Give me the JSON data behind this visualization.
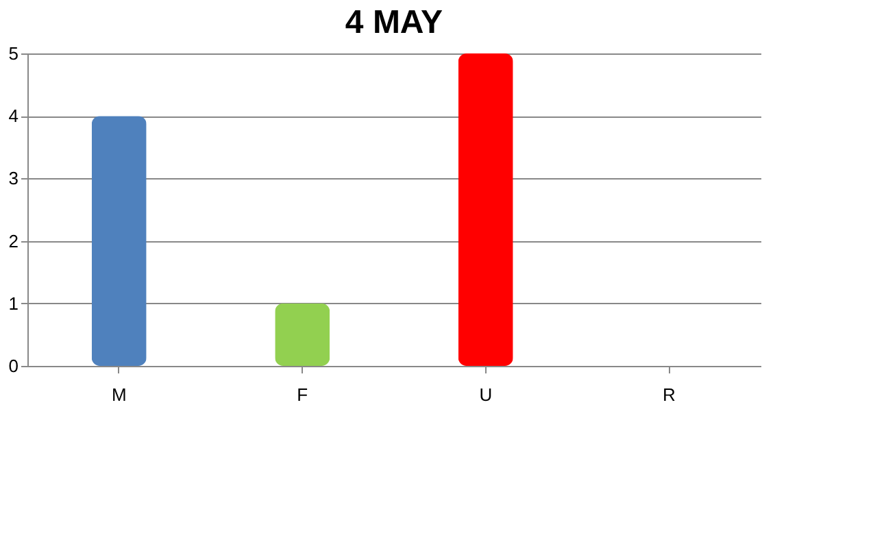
{
  "chart_data": {
    "type": "bar",
    "title": "4 MAY",
    "categories": [
      "M",
      "F",
      "U",
      "R"
    ],
    "values": [
      4,
      1,
      5,
      0
    ],
    "colors": [
      "#4f81bd",
      "#92d050",
      "#ff0000",
      "#7030a0"
    ],
    "ylim": [
      0,
      5
    ],
    "yticks": [
      0,
      1,
      2,
      3,
      4,
      5
    ],
    "grid": "y"
  }
}
